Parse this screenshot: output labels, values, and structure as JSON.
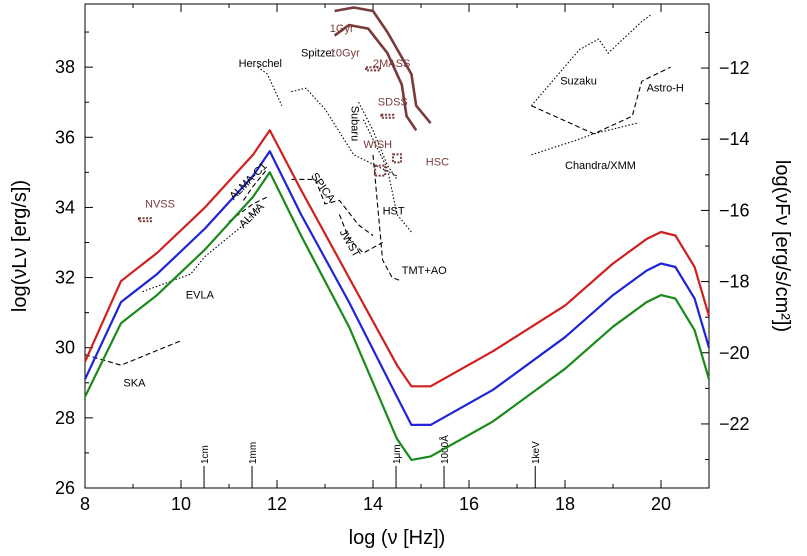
{
  "chart_data": {
    "type": "line",
    "title": "",
    "xlabel": "log (ν [Hz])",
    "ylabel_left": "log(νLν [erg/s])",
    "ylabel_right": "log(νFν [erg/s/cm²])",
    "xlim": [
      8,
      21
    ],
    "ylim_left": [
      26,
      39.8
    ],
    "ylim_right": [
      -23.8,
      -10.2
    ],
    "x_ticks": [
      "8",
      "10",
      "12",
      "14",
      "16",
      "18",
      "20"
    ],
    "y_ticks_left": [
      "26",
      "28",
      "30",
      "32",
      "34",
      "36",
      "38"
    ],
    "y_ticks_right": [
      "−22",
      "−20",
      "−18",
      "−16",
      "−14",
      "−12"
    ],
    "colors": {
      "red": "#d01f1f",
      "blue": "#1f24d6",
      "green": "#1a8a1a",
      "brown": "#7a3a3a",
      "annotation": "#000000"
    },
    "series": [
      {
        "color_key": "red",
        "x": [
          8.0,
          8.75,
          9.5,
          10.5,
          11.5,
          11.85,
          12.5,
          13.5,
          14.5,
          14.8,
          15.2,
          16.5,
          18.0,
          19.0,
          19.7,
          20.0,
          20.3,
          20.7,
          21.0
        ],
        "y": [
          29.6,
          31.9,
          32.7,
          34.0,
          35.5,
          36.2,
          34.5,
          32.0,
          29.5,
          28.9,
          28.9,
          29.9,
          31.2,
          32.4,
          33.1,
          33.3,
          33.2,
          32.3,
          30.9
        ]
      },
      {
        "color_key": "blue",
        "x": [
          8.0,
          8.75,
          9.5,
          10.5,
          11.5,
          11.85,
          12.5,
          13.5,
          14.5,
          14.8,
          15.2,
          16.5,
          18.0,
          19.0,
          19.7,
          20.0,
          20.3,
          20.7,
          21.0
        ],
        "y": [
          29.1,
          31.3,
          32.1,
          33.4,
          34.9,
          35.6,
          33.8,
          31.3,
          28.6,
          27.8,
          27.8,
          28.8,
          30.3,
          31.5,
          32.2,
          32.4,
          32.3,
          31.4,
          30.0
        ]
      },
      {
        "color_key": "green",
        "x": [
          8.0,
          8.75,
          9.5,
          10.5,
          11.5,
          11.85,
          12.5,
          13.5,
          14.5,
          14.8,
          15.2,
          16.5,
          18.0,
          19.0,
          19.7,
          20.0,
          20.3,
          20.7,
          21.0
        ],
        "y": [
          28.6,
          30.7,
          31.5,
          32.8,
          34.3,
          35.0,
          33.2,
          30.6,
          27.4,
          26.8,
          26.9,
          27.9,
          29.4,
          30.6,
          31.3,
          31.5,
          31.4,
          30.5,
          29.1
        ]
      }
    ],
    "sensitivities": [
      {
        "label": "SKA",
        "style": "dashed",
        "x": [
          8.0,
          8.75,
          10.0
        ],
        "y": [
          29.8,
          29.5,
          30.2
        ]
      },
      {
        "label": "EVLA",
        "style": "dotted",
        "x": [
          9.2,
          10.2,
          10.5,
          11.3,
          11.6
        ],
        "y": [
          31.6,
          32.1,
          32.6,
          33.5,
          34.0
        ]
      },
      {
        "label": "ALMA",
        "style": "dashed",
        "x": [
          11.0,
          11.2,
          11.5,
          11.8
        ],
        "y": [
          33.6,
          33.8,
          34.1,
          34.3
        ]
      },
      {
        "label": "ALMA-C1",
        "style": "dashed",
        "x": [
          11.3,
          11.5,
          11.8
        ],
        "y": [
          34.2,
          34.6,
          35.1
        ]
      },
      {
        "label": "Herschel",
        "style": "dotted",
        "x": [
          11.6,
          11.8,
          12.1
        ],
        "y": [
          38.0,
          37.8,
          36.9
        ]
      },
      {
        "label": "Spitzer",
        "style": "dotted",
        "x": [
          12.3,
          12.6,
          13.0,
          13.6,
          14.5
        ],
        "y": [
          37.3,
          37.4,
          36.8,
          35.5,
          34.9
        ]
      },
      {
        "label": "SPICA",
        "style": "dashed",
        "x": [
          12.3,
          12.8,
          13.0,
          13.3,
          13.7,
          14.0
        ],
        "y": [
          34.8,
          34.8,
          34.1,
          34.2,
          33.5,
          33.2
        ]
      },
      {
        "label": "JWST",
        "style": "dashed",
        "x": [
          13.3,
          13.5,
          13.8,
          14.2
        ],
        "y": [
          33.8,
          33.1,
          32.7,
          33.0
        ]
      },
      {
        "label": "TMT+AO",
        "style": "dashed",
        "x": [
          14.0,
          14.2,
          14.4,
          14.6
        ],
        "y": [
          35.5,
          32.5,
          32.0,
          31.9
        ]
      },
      {
        "label": "HST",
        "style": "dotted",
        "x": [
          13.8,
          14.3,
          14.5,
          14.8
        ],
        "y": [
          36.5,
          35.1,
          33.8,
          33.3
        ]
      },
      {
        "label": "Subaru",
        "style": "dotted",
        "x": [
          13.7,
          14.0,
          14.3,
          14.5
        ],
        "y": [
          37.0,
          36.2,
          35.2,
          34.8
        ]
      },
      {
        "label": "Suzaku",
        "style": "dotted",
        "x": [
          17.3,
          18.3,
          18.7,
          18.9,
          19.6,
          19.8
        ],
        "y": [
          36.9,
          38.5,
          38.8,
          38.4,
          39.3,
          39.5
        ]
      },
      {
        "label": "Chandra/XMM",
        "style": "dotted",
        "x": [
          17.3,
          18.2,
          18.6,
          19.5
        ],
        "y": [
          35.5,
          35.9,
          36.1,
          36.4
        ]
      },
      {
        "label": "Astro-H",
        "style": "dashed",
        "x": [
          17.3,
          18.6,
          19.4,
          19.6,
          20.2
        ],
        "y": [
          36.9,
          36.1,
          36.6,
          37.6,
          38.0
        ]
      }
    ],
    "galaxy_tracks": [
      {
        "label": "1Gyr",
        "x": [
          13.2,
          13.6,
          14.0,
          14.3,
          14.8,
          14.9,
          15.2
        ],
        "y": [
          39.6,
          39.7,
          39.6,
          39.0,
          37.8,
          36.9,
          36.4
        ]
      },
      {
        "label": "10Gyr",
        "x": [
          13.2,
          13.5,
          13.9,
          14.3,
          14.6,
          14.7,
          14.9
        ],
        "y": [
          38.9,
          39.2,
          39.1,
          38.4,
          37.5,
          36.6,
          36.2
        ]
      }
    ],
    "annotations": [
      {
        "text": "SKA",
        "color_key": "annotation",
        "x": 8.8,
        "y": 28.9
      },
      {
        "text": "EVLA",
        "color_key": "annotation",
        "x": 10.1,
        "y": 31.4
      },
      {
        "text": "ALMA",
        "color_key": "annotation",
        "x": 11.3,
        "y": 33.4,
        "rotate": -45
      },
      {
        "text": "ALMA-C1",
        "color_key": "annotation",
        "x": 11.1,
        "y": 34.2,
        "rotate": -45
      },
      {
        "text": "Herschel",
        "color_key": "annotation",
        "x": 11.2,
        "y": 38.0
      },
      {
        "text": "Spitzer",
        "color_key": "annotation",
        "x": 12.5,
        "y": 38.3
      },
      {
        "text": "SPICA",
        "color_key": "annotation",
        "x": 12.7,
        "y": 34.9,
        "rotate": 55
      },
      {
        "text": "JWST",
        "color_key": "annotation",
        "x": 13.3,
        "y": 33.3,
        "rotate": 60
      },
      {
        "text": "Subaru",
        "color_key": "annotation",
        "x": 13.55,
        "y": 36.9,
        "rotate": 90
      },
      {
        "text": "HST",
        "color_key": "annotation",
        "x": 14.2,
        "y": 33.8
      },
      {
        "text": "TMT+AO",
        "color_key": "annotation",
        "x": 14.6,
        "y": 32.1
      },
      {
        "text": "Suzaku",
        "color_key": "annotation",
        "x": 17.9,
        "y": 37.5
      },
      {
        "text": "Astro-H",
        "color_key": "annotation",
        "x": 19.7,
        "y": 37.3
      },
      {
        "text": "Chandra/XMM",
        "color_key": "annotation",
        "x": 18.0,
        "y": 35.1
      },
      {
        "text": "1Gyr",
        "color_key": "brown",
        "x": 13.1,
        "y": 39.0
      },
      {
        "text": "10Gyr",
        "color_key": "brown",
        "x": 13.1,
        "y": 38.3
      },
      {
        "text": "2MASS",
        "color_key": "brown",
        "x": 14.0,
        "y": 38.0
      },
      {
        "text": "SDSS",
        "color_key": "brown",
        "x": 14.1,
        "y": 36.9
      },
      {
        "text": "WISH",
        "color_key": "brown",
        "x": 13.8,
        "y": 35.7
      },
      {
        "text": "HSC",
        "color_key": "brown",
        "x": 15.1,
        "y": 35.2
      },
      {
        "text": "NVSS",
        "color_key": "brown",
        "x": 9.25,
        "y": 34.0
      }
    ],
    "wavelength_markers": [
      {
        "label": "1cm",
        "x": 10.48
      },
      {
        "label": "1mm",
        "x": 11.48
      },
      {
        "label": "1μm",
        "x": 14.48
      },
      {
        "label": "1000Å",
        "x": 15.48
      },
      {
        "label": "1keV",
        "x": 17.38
      }
    ],
    "grid": false,
    "legend": "none"
  }
}
